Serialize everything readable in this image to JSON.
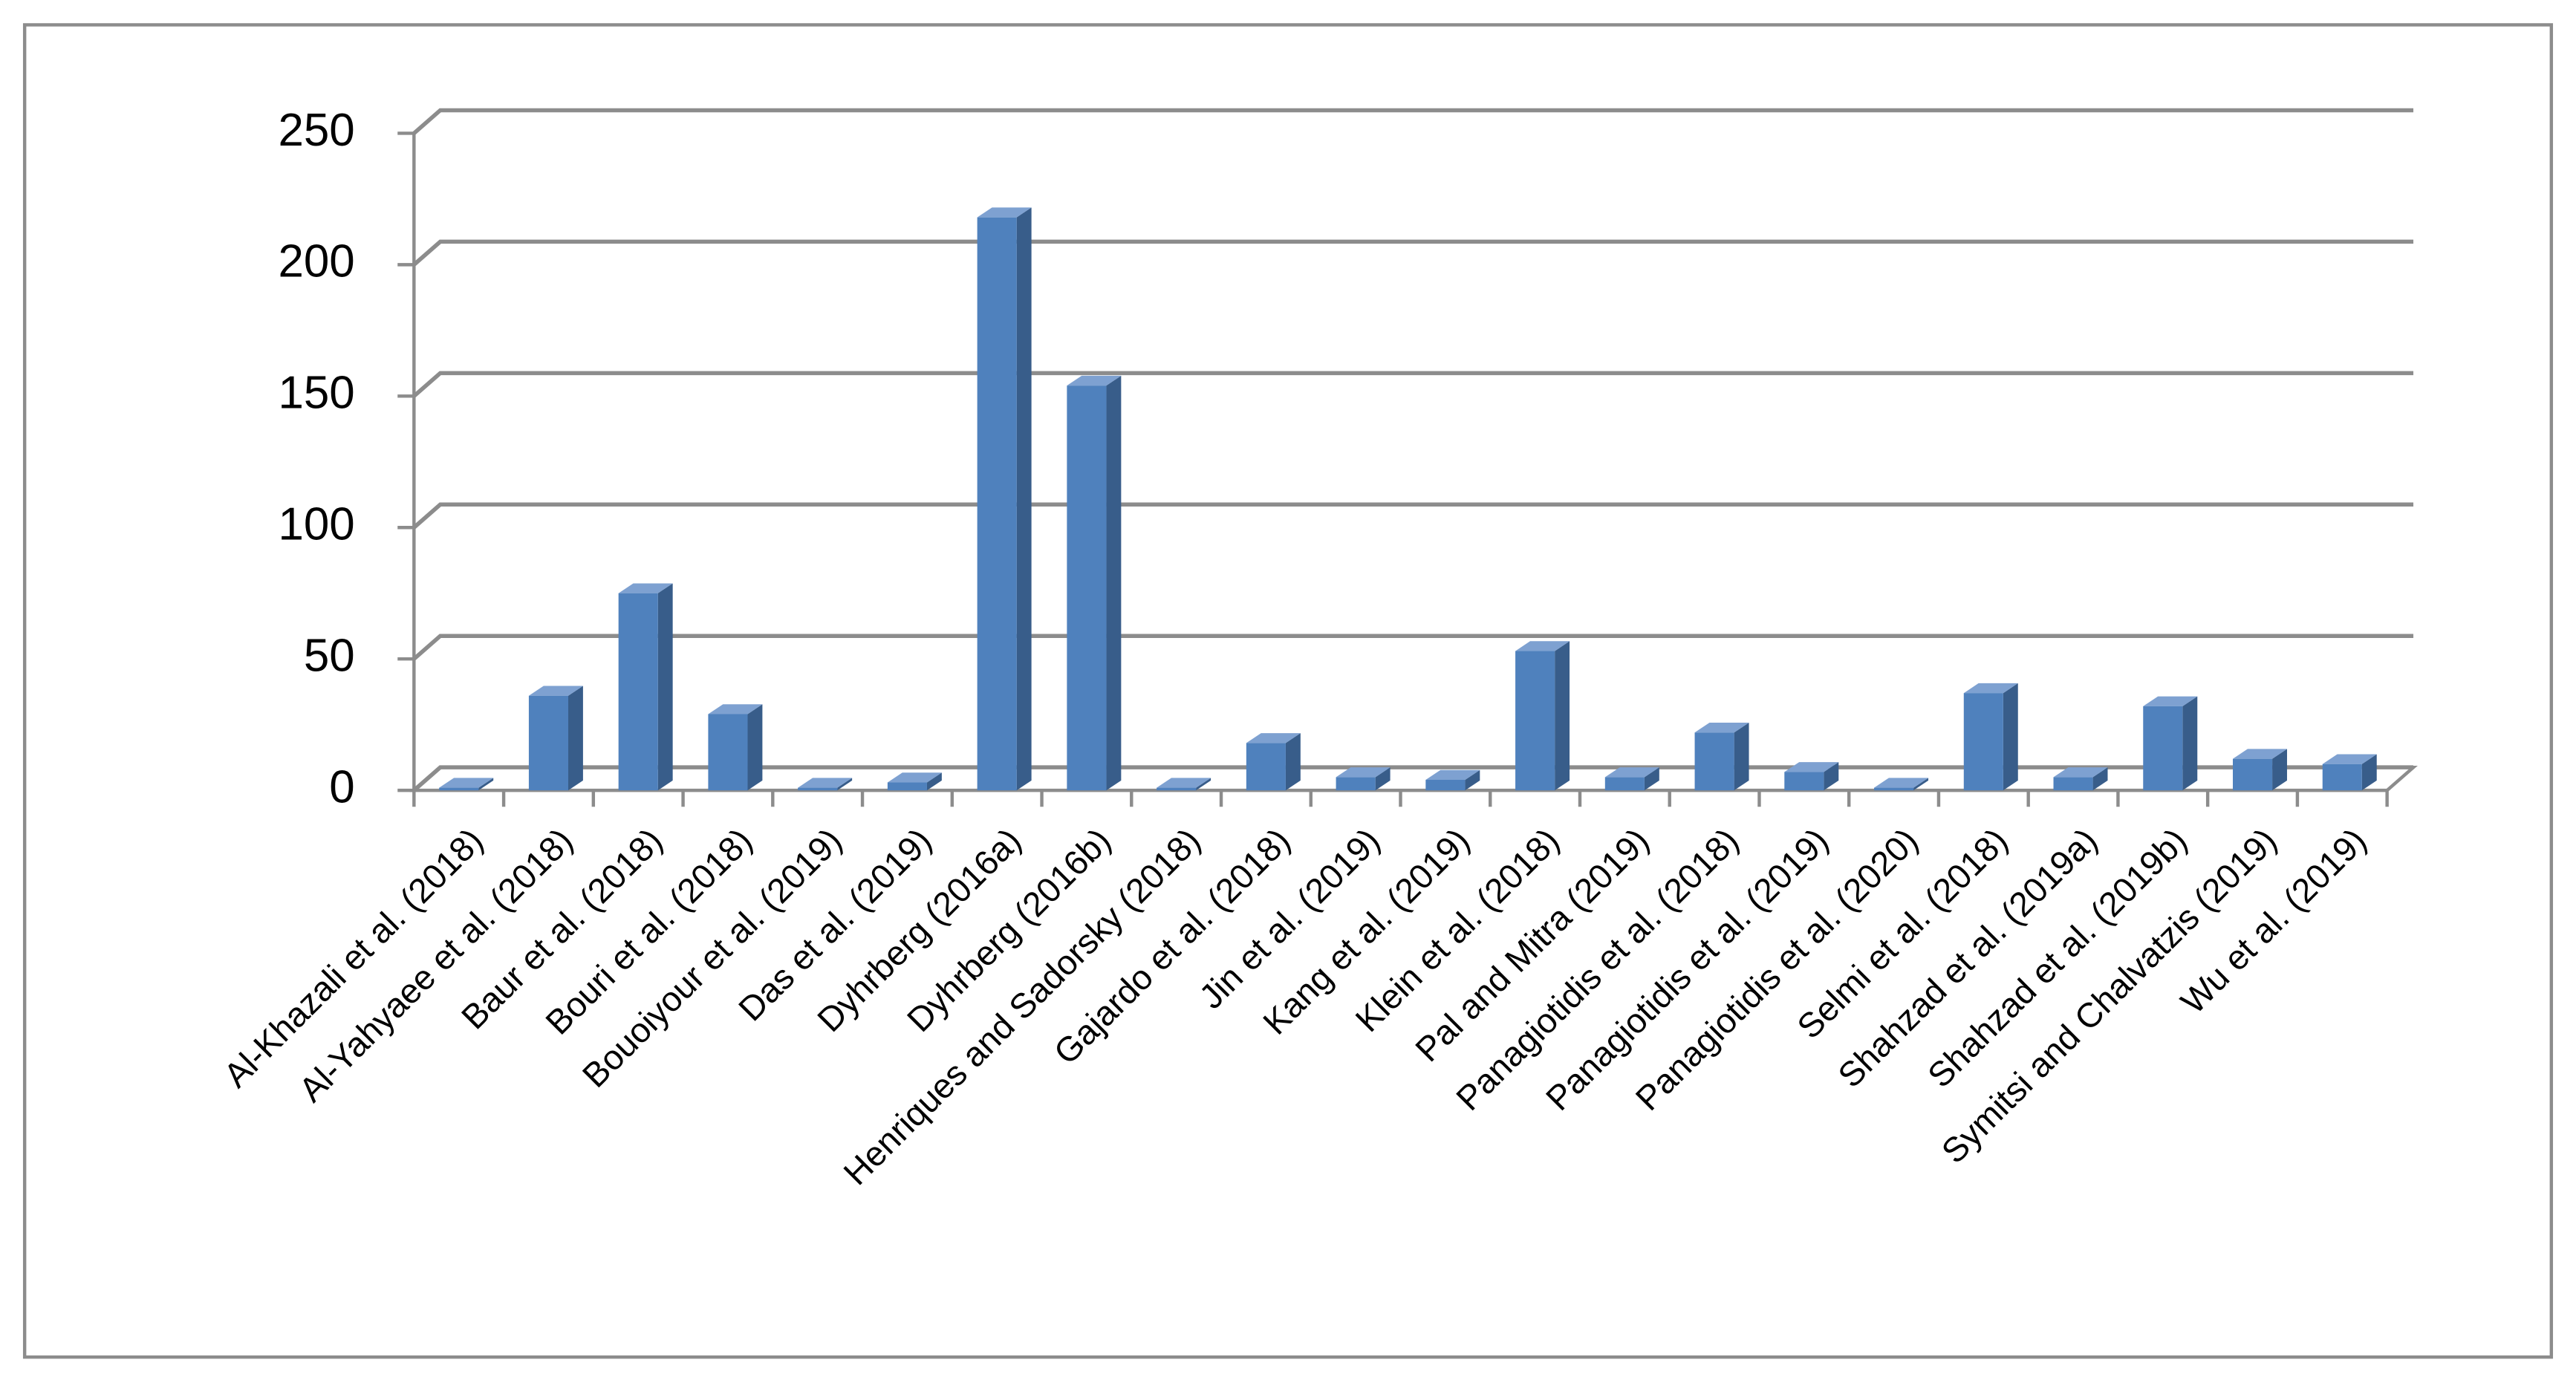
{
  "chart_data": {
    "type": "bar3d",
    "categories": [
      "Al-Khazali et al. (2018)",
      "Al-Yahyaee et al. (2018)",
      "Baur et al. (2018)",
      "Bouri et al. (2018)",
      "Bouoiyour et al. (2019)",
      "Das et al. (2019)",
      "Dyhrberg (2016a)",
      "Dyhrberg (2016b)",
      "Henriques and Sadorsky (2018)",
      "Gajardo et al. (2018)",
      "Jin et al. (2019)",
      "Kang et al. (2019)",
      "Klein et al. (2018)",
      "Pal and Mitra (2019)",
      "Panagiotidis et al. (2018)",
      "Panagiotidis et al. (2019)",
      "Panagiotidis et al. (2020)",
      "Selmi et al. (2018)",
      "Shahzad et al. (2019a)",
      "Shahzad et al. (2019b)",
      "Symitsi and Chalvatzis (2019)",
      "Wu et al. (2019)"
    ],
    "values": [
      1,
      36,
      75,
      29,
      1,
      3,
      218,
      154,
      1,
      18,
      5,
      4,
      53,
      5,
      22,
      7,
      1,
      37,
      5,
      32,
      12,
      10
    ],
    "color": "#4f81bd",
    "ylim": [
      0,
      250
    ],
    "yticks": [
      0,
      50,
      100,
      150,
      200,
      250
    ],
    "grid": true
  }
}
